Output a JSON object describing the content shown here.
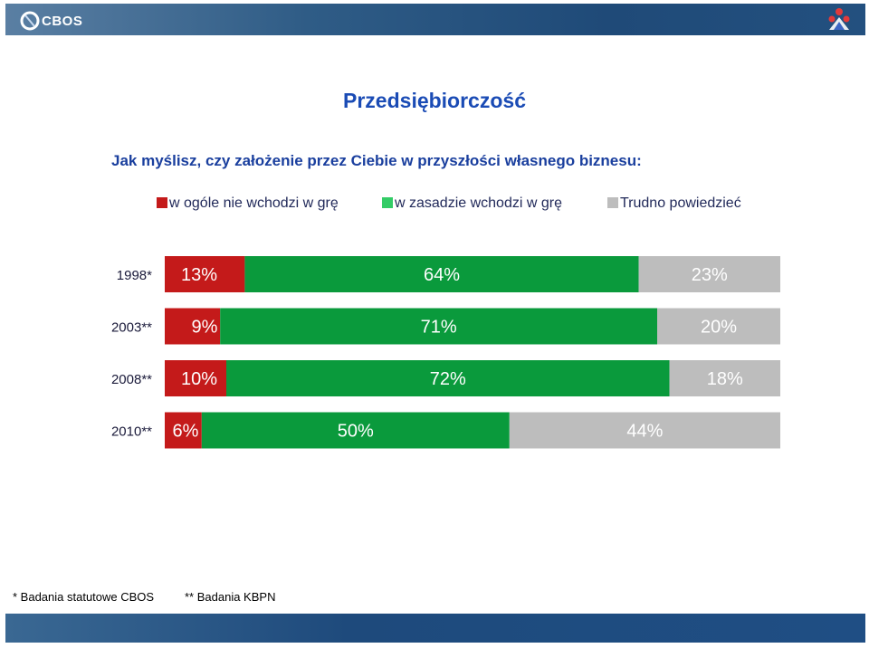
{
  "header": {
    "logo_text": "CBOS",
    "logo_icon": "cbos-logo-icon",
    "corner_icon": "people-icon"
  },
  "colors": {
    "red": "#c41a1a",
    "green": "#0a9a3c",
    "gray": "#bdbdbd",
    "title": "#1a4bb5",
    "question": "#1a3f9e"
  },
  "title": "Przedsiębiorczość",
  "question": "Jak myślisz, czy założenie przez Ciebie w przyszłości własnego biznesu:",
  "legend": [
    {
      "label": "w ogóle nie wchodzi w grę",
      "color": "#c41a1a"
    },
    {
      "label": "w zasadzie wchodzi w grę",
      "color": "#33cc66"
    },
    {
      "label": "Trudno powiedzieć",
      "color": "#bdbdbd"
    }
  ],
  "footnotes": {
    "first": "* Badania statutowe CBOS",
    "second": "** Badania KBPN"
  },
  "chart_data": {
    "type": "bar",
    "orientation": "horizontal",
    "stacked": true,
    "percent": true,
    "categories": [
      "1998*",
      "2003**",
      "2008**",
      "2010**"
    ],
    "series": [
      {
        "name": "w ogóle nie wchodzi w grę",
        "color": "#c41a1a",
        "values": [
          13,
          9,
          10,
          6
        ],
        "labels": [
          "13%",
          "9%",
          "10%",
          "6%"
        ]
      },
      {
        "name": "w zasadzie wchodzi w grę",
        "color": "#0a9a3c",
        "values": [
          64,
          71,
          72,
          50
        ],
        "labels": [
          "64%",
          "71%",
          "72%",
          "50%"
        ]
      },
      {
        "name": "Trudno powiedzieć",
        "color": "#bdbdbd",
        "values": [
          23,
          20,
          18,
          44
        ],
        "labels": [
          "23%",
          "20%",
          "18%",
          "44%"
        ]
      }
    ],
    "xlim": [
      0,
      100
    ],
    "legend_position": "top"
  }
}
